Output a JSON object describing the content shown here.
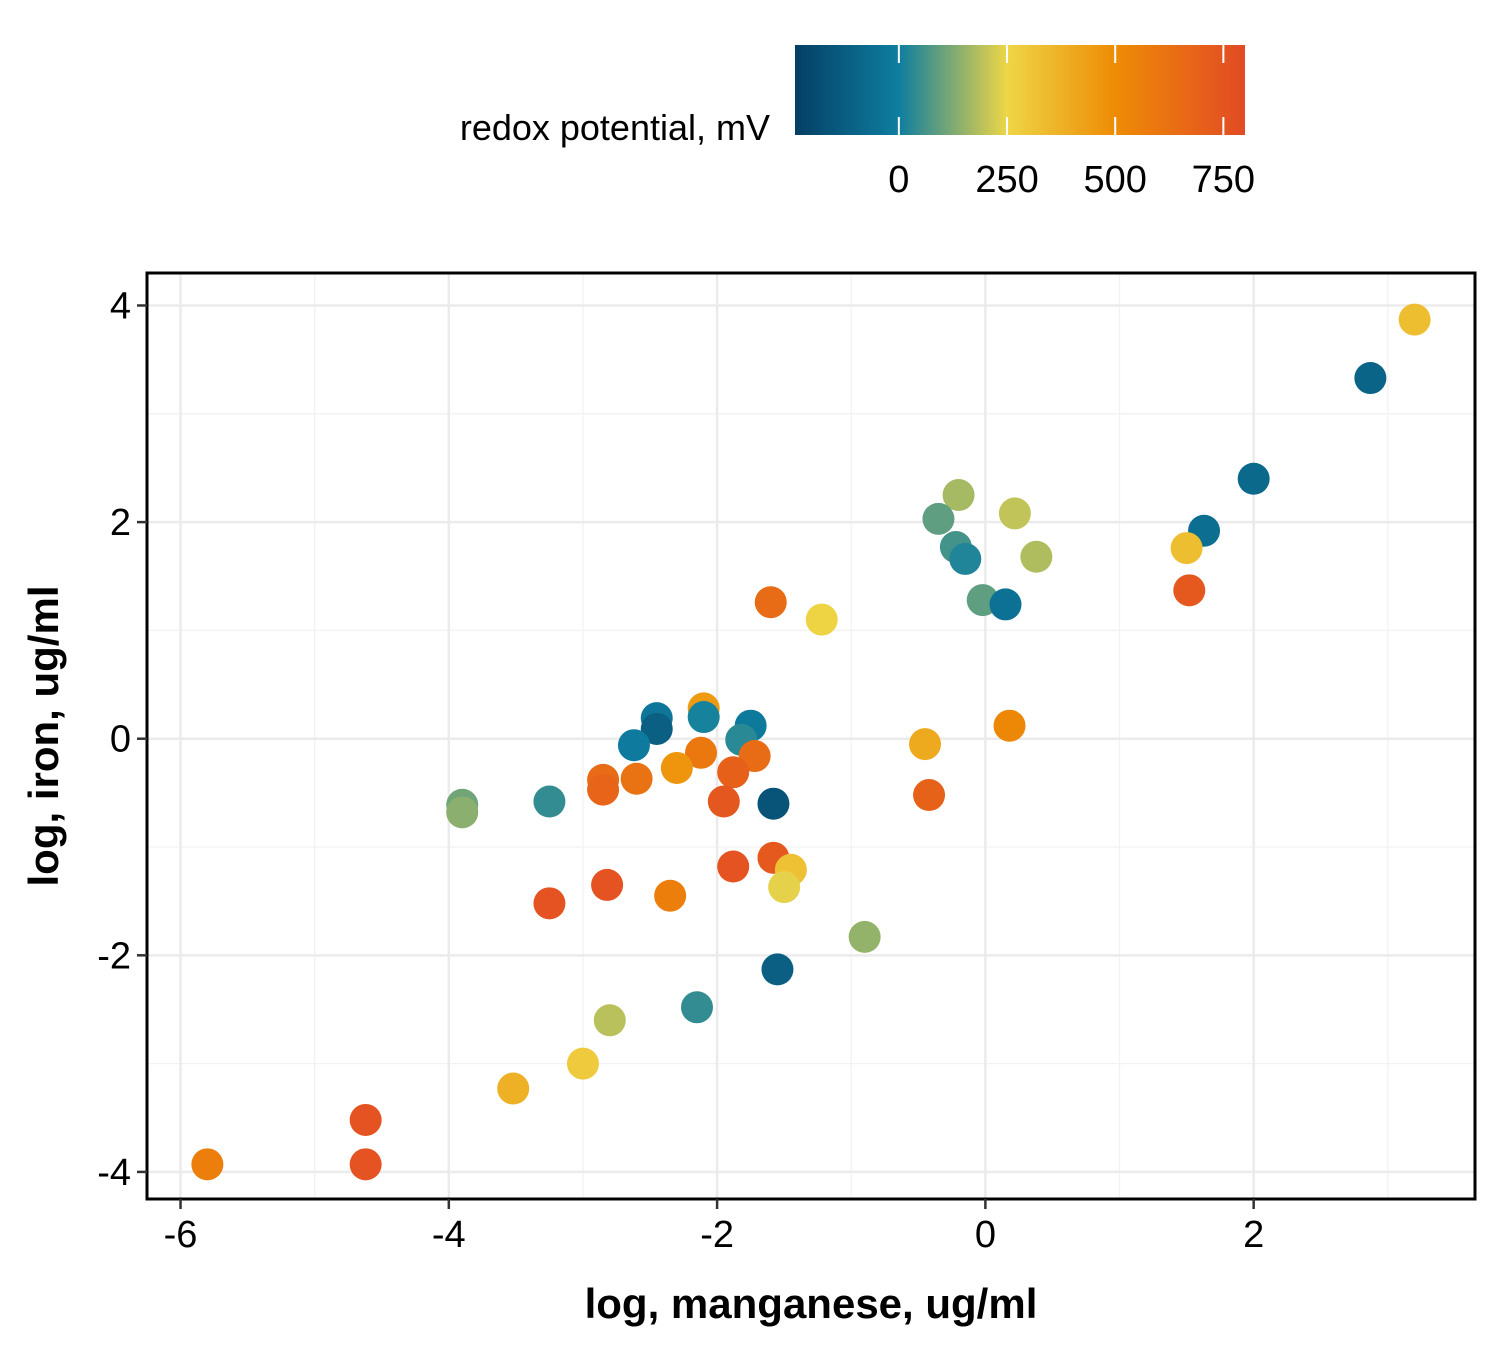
{
  "chart_data": {
    "type": "scatter",
    "xlabel": "log, manganese, ug/ml",
    "ylabel": "log, iron, ug/ml",
    "xlim": [
      -6.25,
      3.65
    ],
    "ylim": [
      -4.25,
      4.3
    ],
    "x_ticks": [
      -6,
      -4,
      -2,
      0,
      2
    ],
    "y_ticks": [
      -4,
      -2,
      0,
      2,
      4
    ],
    "grid": true,
    "colorbar": {
      "title": "redox potential, mV",
      "ticks": [
        0,
        250,
        500,
        750
      ],
      "range": [
        -240,
        800
      ],
      "placement": "top",
      "colors": [
        "#053f65",
        "#0e7ea0",
        "#eed646",
        "#ee8c05",
        "#e24a25"
      ],
      "color_stops_mV": [
        -240,
        0,
        250,
        500,
        800
      ]
    },
    "points": [
      {
        "x": 3.2,
        "y": 3.87,
        "c": 330
      },
      {
        "x": 2.87,
        "y": 3.33,
        "c": -100
      },
      {
        "x": 2.0,
        "y": 2.4,
        "c": -80
      },
      {
        "x": 1.63,
        "y": 1.92,
        "c": -60
      },
      {
        "x": 1.5,
        "y": 1.76,
        "c": 330
      },
      {
        "x": 1.52,
        "y": 1.37,
        "c": 730
      },
      {
        "x": -0.2,
        "y": 2.25,
        "c": 170
      },
      {
        "x": -0.35,
        "y": 2.03,
        "c": 90
      },
      {
        "x": 0.22,
        "y": 2.08,
        "c": 200
      },
      {
        "x": -0.22,
        "y": 1.77,
        "c": 60
      },
      {
        "x": -0.15,
        "y": 1.66,
        "c": 20
      },
      {
        "x": 0.38,
        "y": 1.68,
        "c": 180
      },
      {
        "x": -0.02,
        "y": 1.28,
        "c": 90
      },
      {
        "x": 0.15,
        "y": 1.24,
        "c": -50
      },
      {
        "x": -1.6,
        "y": 1.26,
        "c": 650
      },
      {
        "x": -1.22,
        "y": 1.1,
        "c": 260
      },
      {
        "x": -2.1,
        "y": 0.28,
        "c": 450
      },
      {
        "x": -2.1,
        "y": 0.2,
        "c": 10
      },
      {
        "x": -2.45,
        "y": 0.19,
        "c": -30
      },
      {
        "x": -2.45,
        "y": 0.09,
        "c": -120
      },
      {
        "x": -1.75,
        "y": 0.12,
        "c": -20
      },
      {
        "x": -1.82,
        "y": -0.01,
        "c": 30
      },
      {
        "x": -2.62,
        "y": -0.06,
        "c": -10
      },
      {
        "x": -2.12,
        "y": -0.13,
        "c": 590
      },
      {
        "x": -1.72,
        "y": -0.16,
        "c": 650
      },
      {
        "x": -2.3,
        "y": -0.27,
        "c": 470
      },
      {
        "x": -1.88,
        "y": -0.31,
        "c": 700
      },
      {
        "x": -2.85,
        "y": -0.38,
        "c": 650
      },
      {
        "x": -2.6,
        "y": -0.37,
        "c": 620
      },
      {
        "x": -2.85,
        "y": -0.47,
        "c": 680
      },
      {
        "x": -1.95,
        "y": -0.58,
        "c": 740
      },
      {
        "x": -1.58,
        "y": -0.6,
        "c": -160
      },
      {
        "x": -3.25,
        "y": -0.58,
        "c": 40
      },
      {
        "x": -3.9,
        "y": -0.61,
        "c": 110
      },
      {
        "x": -3.9,
        "y": -0.68,
        "c": 140
      },
      {
        "x": -0.45,
        "y": -0.05,
        "c": 400
      },
      {
        "x": 0.18,
        "y": 0.12,
        "c": 520
      },
      {
        "x": -0.42,
        "y": -0.52,
        "c": 690
      },
      {
        "x": -1.58,
        "y": -1.1,
        "c": 730
      },
      {
        "x": -1.45,
        "y": -1.21,
        "c": 320
      },
      {
        "x": -1.5,
        "y": -1.37,
        "c": 240
      },
      {
        "x": -1.88,
        "y": -1.18,
        "c": 760
      },
      {
        "x": -2.82,
        "y": -1.35,
        "c": 760
      },
      {
        "x": -2.35,
        "y": -1.45,
        "c": 560
      },
      {
        "x": -3.25,
        "y": -1.52,
        "c": 760
      },
      {
        "x": -0.9,
        "y": -1.83,
        "c": 150
      },
      {
        "x": -1.55,
        "y": -2.13,
        "c": -120
      },
      {
        "x": -2.15,
        "y": -2.48,
        "c": 40
      },
      {
        "x": -2.8,
        "y": -2.6,
        "c": 190
      },
      {
        "x": -3.0,
        "y": -3.0,
        "c": 290
      },
      {
        "x": -3.52,
        "y": -3.23,
        "c": 380
      },
      {
        "x": -4.62,
        "y": -3.52,
        "c": 760
      },
      {
        "x": -4.62,
        "y": -3.93,
        "c": 760
      },
      {
        "x": -5.8,
        "y": -3.93,
        "c": 560
      }
    ]
  }
}
